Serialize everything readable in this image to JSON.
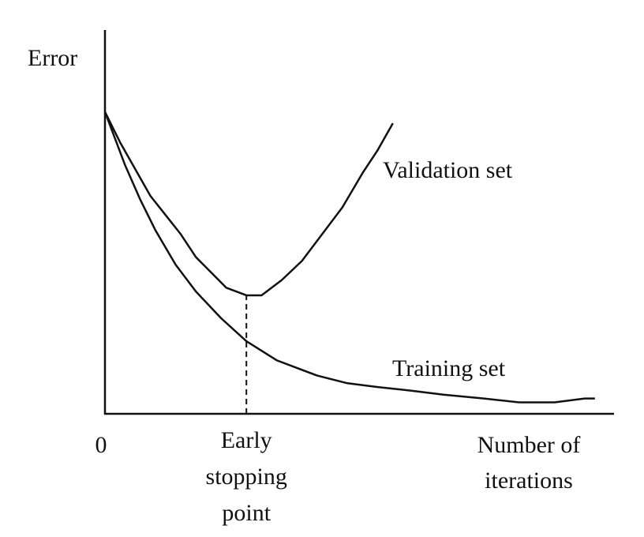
{
  "chart_data": {
    "type": "line",
    "ylabel": "Error",
    "xlabel": [
      "Number of",
      "iterations"
    ],
    "xlim": [
      0,
      100
    ],
    "ylim": [
      0,
      100
    ],
    "xticks": [
      0
    ],
    "grid": false,
    "series": [
      {
        "name": "Validation set",
        "color": "#111111",
        "x": [
          0,
          3,
          6,
          9,
          12,
          15,
          18,
          21,
          24,
          28,
          31,
          35,
          39,
          43,
          47,
          51,
          54,
          57
        ],
        "values": [
          79,
          71,
          64,
          57,
          52,
          47,
          41,
          37,
          33,
          31,
          31,
          35,
          40,
          47,
          54,
          63,
          69,
          76
        ]
      },
      {
        "name": "Training set",
        "color": "#111111",
        "x": [
          0,
          4,
          7,
          10,
          14,
          18,
          23,
          28,
          34,
          42,
          48,
          54,
          61,
          67,
          75,
          82,
          89,
          95,
          97
        ],
        "values": [
          79,
          65,
          56,
          48,
          39,
          32,
          25,
          19,
          14,
          10,
          8,
          7,
          6,
          5,
          4,
          3,
          3,
          4,
          4
        ]
      }
    ],
    "early_stopping": {
      "label": [
        "Early",
        "stopping",
        "point"
      ],
      "x": 28,
      "y": 31
    }
  }
}
